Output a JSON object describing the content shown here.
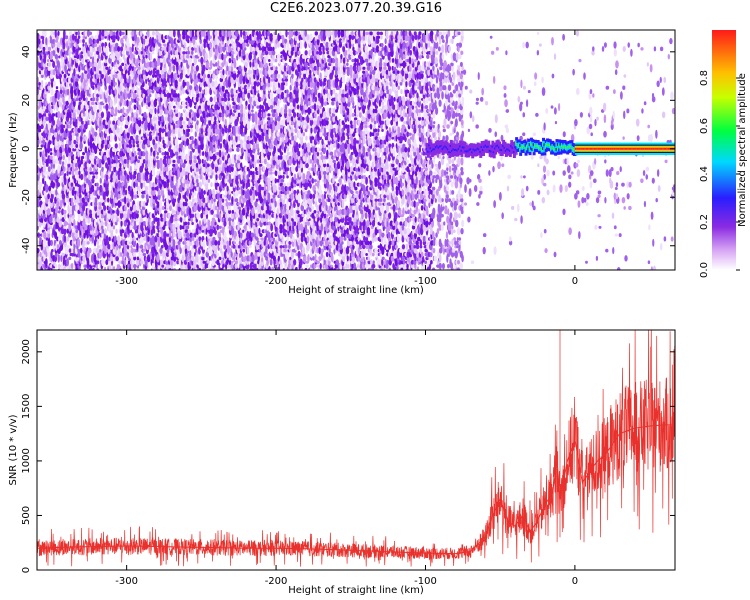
{
  "figure": {
    "title": "C2E6.2023.077.20.39.G16"
  },
  "chart_data": [
    {
      "type": "heatmap",
      "title": "C2E6.2023.077.20.39.G16",
      "xlabel": "Height of straight line (km)",
      "ylabel": "Frequency (Hz)",
      "xlim": [
        -360,
        67
      ],
      "ylim": [
        -50,
        49
      ],
      "xticks": [
        -300,
        -200,
        -100,
        0
      ],
      "yticks": [
        -40,
        -20,
        0,
        20,
        40
      ],
      "grid": false,
      "colorbar": {
        "label": "Normalized spectral amplitude",
        "range": [
          0.0,
          1.0
        ],
        "ticks": [
          0.0,
          0.2,
          0.4,
          0.6,
          0.8
        ],
        "colormap": "rainbow (white-violet-blue-cyan-green-yellow-red)"
      },
      "description_points": [
        {
          "x_range": [
            -360,
            -75
          ],
          "frequency_range": [
            -50,
            49
          ],
          "amplitude": 0.05,
          "note": "broadband noise"
        },
        {
          "x_range": [
            -100,
            -40
          ],
          "frequency": 0,
          "amplitude": 0.3
        },
        {
          "x_range": [
            -40,
            0
          ],
          "frequency": 1,
          "amplitude": 0.6
        },
        {
          "x_range": [
            0,
            67
          ],
          "frequency": 0,
          "amplitude": 0.95
        }
      ]
    },
    {
      "type": "line",
      "xlabel": "Height of straight line (km)",
      "ylabel": "SNR (10 * v/v)",
      "xlim": [
        -360,
        67
      ],
      "ylim": [
        0,
        2200
      ],
      "xticks": [
        -300,
        -200,
        -100,
        0
      ],
      "yticks": [
        0,
        500,
        1000,
        1500,
        2000
      ],
      "grid": false,
      "series": [
        {
          "color": "#e8312c",
          "x": [
            -360,
            -340,
            -320,
            -300,
            -280,
            -260,
            -240,
            -220,
            -200,
            -180,
            -160,
            -140,
            -120,
            -100,
            -80,
            -70,
            -60,
            -55,
            -50,
            -45,
            -40,
            -35,
            -30,
            -25,
            -20,
            -15,
            -12,
            -10,
            -5,
            0,
            5,
            10,
            15,
            20,
            25,
            30,
            40,
            50,
            60,
            67
          ],
          "y": [
            200,
            210,
            215,
            220,
            215,
            210,
            205,
            200,
            200,
            195,
            185,
            175,
            165,
            155,
            150,
            170,
            300,
            500,
            650,
            450,
            400,
            500,
            350,
            450,
            600,
            700,
            1000,
            650,
            1000,
            1200,
            800,
            900,
            1000,
            1050,
            1150,
            1250,
            1300,
            1320,
            1330,
            1330
          ]
        }
      ],
      "annotations_peak": {
        "x": -10,
        "y": 2200
      }
    }
  ]
}
